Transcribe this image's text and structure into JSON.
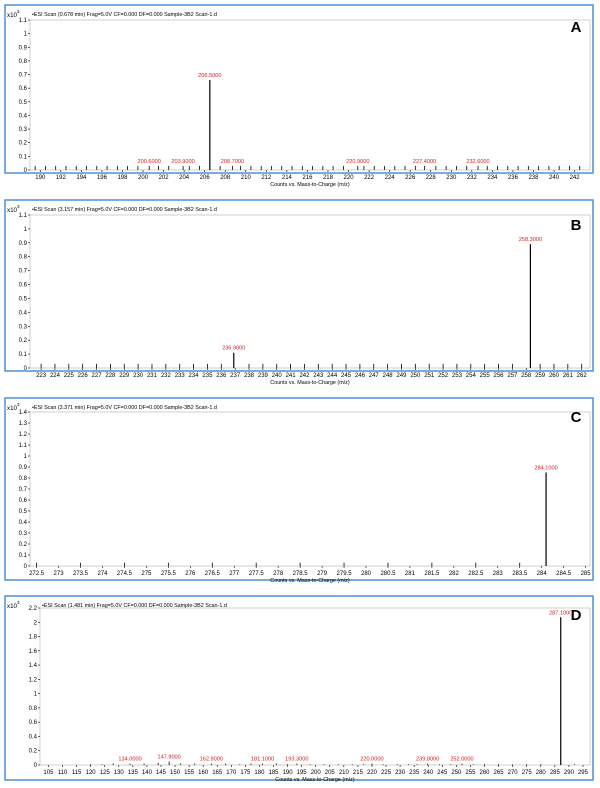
{
  "chart_data": [
    {
      "type": "bar",
      "panel_label": "A",
      "title": "•ESI Scan (0.678 min) Frag=5.0V CF=0.000 DF=0.000 Sample-3B2 Scan-1.d",
      "y_multiplier": "x10",
      "y_multiplier_exp": "3",
      "xlabel": "Counts vs. Mass-to-Charge (m/z)",
      "xlim": [
        189,
        243.5
      ],
      "ylim": [
        0,
        1.1
      ],
      "yticks": [
        0,
        0.1,
        0.2,
        0.3,
        0.4,
        0.5,
        0.6,
        0.7,
        0.8,
        0.9,
        1,
        1.1
      ],
      "xticks": [
        190,
        192,
        194,
        196,
        198,
        200,
        202,
        204,
        206,
        208,
        210,
        212,
        214,
        216,
        218,
        220,
        222,
        224,
        226,
        228,
        230,
        232,
        234,
        236,
        238,
        240,
        242
      ],
      "x": [
        189.5,
        190.5,
        191.5,
        192.5,
        193.5,
        194.5,
        195.5,
        196.5,
        197.5,
        198.5,
        199.5,
        200.6,
        201.5,
        202.5,
        203.9,
        204.5,
        205.5,
        206.5,
        207.5,
        208.7,
        209.5,
        210.5,
        211.5,
        212.5,
        213.5,
        214.5,
        215.5,
        216.5,
        217.5,
        218.5,
        219.5,
        220.9,
        221.5,
        222.5,
        223.5,
        224.5,
        225.5,
        226.5,
        227.4,
        228.5,
        229.5,
        230.5,
        231.5,
        232.6,
        233.5,
        234.5,
        235.5,
        236.5,
        237.5,
        238.5,
        239.5,
        240.5,
        241.5,
        242.5
      ],
      "values": [
        0.03,
        0.03,
        0.03,
        0.03,
        0.03,
        0.03,
        0.03,
        0.03,
        0.03,
        0.03,
        0.03,
        0.03,
        0.03,
        0.03,
        0.03,
        0.03,
        0.03,
        0.66,
        0.03,
        0.03,
        0.03,
        0.03,
        0.03,
        0.03,
        0.03,
        0.03,
        0.03,
        0.03,
        0.03,
        0.03,
        0.03,
        0.03,
        0.03,
        0.03,
        0.03,
        0.03,
        0.03,
        0.03,
        0.03,
        0.03,
        0.03,
        0.03,
        0.03,
        0.03,
        0.03,
        0.03,
        0.03,
        0.03,
        0.03,
        0.03,
        0.03,
        0.03,
        0.03,
        0.03
      ],
      "peak_labels": [
        {
          "x": 206.5,
          "y": 0.66,
          "text": "206.5000"
        },
        {
          "x": 200.6,
          "y": 0.03,
          "text": "200.6000"
        },
        {
          "x": 203.9,
          "y": 0.03,
          "text": "203.9000"
        },
        {
          "x": 208.7,
          "y": 0.03,
          "text": "208.7000"
        },
        {
          "x": 220.9,
          "y": 0.03,
          "text": "220.9000"
        },
        {
          "x": 227.4,
          "y": 0.03,
          "text": "227.4000"
        },
        {
          "x": 232.6,
          "y": 0.03,
          "text": "232.6000"
        }
      ]
    },
    {
      "type": "bar",
      "panel_label": "B",
      "title": "•ESI Scan (3.157 min) Frag=5.0V CF=0.000 DF=0.000 Sample-3B2 Scan-1.d",
      "y_multiplier": "x10",
      "y_multiplier_exp": "3",
      "xlabel": "Counts vs. Mass-to-Charge (m/z)",
      "xlim": [
        222.2,
        262.6
      ],
      "ylim": [
        0,
        1.1
      ],
      "yticks": [
        0,
        0.1,
        0.2,
        0.3,
        0.4,
        0.5,
        0.6,
        0.7,
        0.8,
        0.9,
        1,
        1.1
      ],
      "xticks": [
        223,
        224,
        225,
        226,
        227,
        228,
        229,
        230,
        231,
        232,
        233,
        234,
        235,
        236,
        237,
        238,
        239,
        240,
        241,
        242,
        243,
        244,
        245,
        246,
        247,
        248,
        249,
        250,
        251,
        252,
        253,
        254,
        255,
        256,
        257,
        258,
        259,
        260,
        261,
        262
      ],
      "x": [
        223,
        224,
        225,
        226,
        227,
        228,
        229,
        230,
        231,
        232,
        233,
        234,
        235,
        236,
        236.9,
        238,
        239,
        240,
        241,
        242,
        243,
        244,
        245,
        246,
        247,
        248,
        249,
        250,
        251,
        252,
        253,
        254,
        255,
        256,
        257,
        258.3,
        259,
        260,
        261,
        262
      ],
      "values": [
        0.03,
        0.03,
        0.03,
        0.03,
        0.03,
        0.03,
        0.03,
        0.03,
        0.03,
        0.03,
        0.03,
        0.03,
        0.03,
        0.03,
        0.11,
        0.03,
        0.03,
        0.03,
        0.03,
        0.03,
        0.03,
        0.03,
        0.03,
        0.03,
        0.03,
        0.03,
        0.03,
        0.03,
        0.03,
        0.03,
        0.03,
        0.03,
        0.03,
        0.03,
        0.03,
        0.89,
        0.03,
        0.03,
        0.03,
        0.03
      ],
      "peak_labels": [
        {
          "x": 258.3,
          "y": 0.89,
          "text": "258.3000"
        },
        {
          "x": 236.9,
          "y": 0.11,
          "text": "236.9000"
        }
      ]
    },
    {
      "type": "bar",
      "panel_label": "C",
      "title": "•ESI Scan (3.371 min) Frag=5.0V CF=0.000 DF=0.000 Sample-3B2 Scan-1.d",
      "y_multiplier": "x10",
      "y_multiplier_exp": "3",
      "xlabel": "Counts vs. Mass-to-Charge (m/z)",
      "xlim": [
        272.35,
        285.1
      ],
      "ylim": [
        0,
        1.4
      ],
      "yticks": [
        0,
        0.1,
        0.2,
        0.3,
        0.4,
        0.5,
        0.6,
        0.7,
        0.8,
        0.9,
        1,
        1.1,
        1.2,
        1.3,
        1.4
      ],
      "xticks": [
        272.5,
        273,
        273.5,
        274,
        274.5,
        275,
        275.5,
        276,
        276.5,
        277,
        277.5,
        278,
        278.5,
        279,
        279.5,
        280,
        280.5,
        281,
        281.5,
        282,
        282.5,
        283,
        283.5,
        284,
        284.5,
        285
      ],
      "x": [
        272.5,
        273.5,
        274.5,
        275.5,
        276.5,
        277.5,
        278.5,
        279.5,
        280.5,
        281.5,
        282.5,
        283.5,
        284.1
      ],
      "values": [
        0.03,
        0.03,
        0.03,
        0.03,
        0.03,
        0.03,
        0.03,
        0.03,
        0.03,
        0.03,
        0.03,
        0.03,
        0.85
      ],
      "peak_labels": [
        {
          "x": 284.1,
          "y": 0.85,
          "text": "284.1000"
        }
      ]
    },
    {
      "type": "bar",
      "panel_label": "D",
      "title": "•ESI Scan (1.481 min) Frag=5.0V CF=0.000 DF=0.000 Sample-3B2 Scan-1.d",
      "y_multiplier": "x10",
      "y_multiplier_exp": "3",
      "xlabel": "Counts vs. Mass-to-Charge (m/z)",
      "xlim": [
        102,
        297.5
      ],
      "ylim": [
        0,
        2.2
      ],
      "yticks": [
        0,
        0.2,
        0.4,
        0.6,
        0.8,
        1,
        1.2,
        1.4,
        1.6,
        1.8,
        2,
        2.2
      ],
      "xticks": [
        105,
        110,
        115,
        120,
        125,
        130,
        135,
        140,
        145,
        150,
        155,
        160,
        165,
        170,
        175,
        180,
        185,
        190,
        195,
        200,
        205,
        210,
        215,
        220,
        225,
        230,
        235,
        240,
        245,
        250,
        255,
        260,
        265,
        270,
        275,
        280,
        285,
        290,
        295
      ],
      "x": [
        120,
        124,
        128,
        134,
        139,
        144,
        147.9,
        152,
        157,
        162.9,
        168,
        173,
        177,
        181.1,
        186,
        190,
        193.3,
        198,
        203,
        208,
        213,
        217,
        220,
        224,
        229,
        233,
        236,
        239.8,
        244,
        248,
        252,
        256,
        260,
        265,
        270,
        275,
        280,
        287.1,
        292
      ],
      "values": [
        0.01,
        0.01,
        0.02,
        0.02,
        0.02,
        0.03,
        0.05,
        0.02,
        0.02,
        0.02,
        0.02,
        0.01,
        0.02,
        0.02,
        0.02,
        0.01,
        0.02,
        0.01,
        0.01,
        0.01,
        0.01,
        0.01,
        0.02,
        0.01,
        0.01,
        0.01,
        0.01,
        0.02,
        0.01,
        0.01,
        0.02,
        0.01,
        0.01,
        0.01,
        0.01,
        0.01,
        0.01,
        2.07,
        0.01
      ],
      "peak_labels": [
        {
          "x": 287.1,
          "y": 2.07,
          "text": "287.1000"
        },
        {
          "x": 134,
          "y": 0.02,
          "text": "134.0000"
        },
        {
          "x": 147.9,
          "y": 0.05,
          "text": "147.9000"
        },
        {
          "x": 162.9,
          "y": 0.02,
          "text": "162.9000"
        },
        {
          "x": 181.1,
          "y": 0.02,
          "text": "181.1000"
        },
        {
          "x": 193.3,
          "y": 0.02,
          "text": "193.3000"
        },
        {
          "x": 220,
          "y": 0.02,
          "text": "220.0000"
        },
        {
          "x": 239.8,
          "y": 0.02,
          "text": "239.8000"
        },
        {
          "x": 252,
          "y": 0.02,
          "text": "252.0000"
        }
      ]
    }
  ]
}
